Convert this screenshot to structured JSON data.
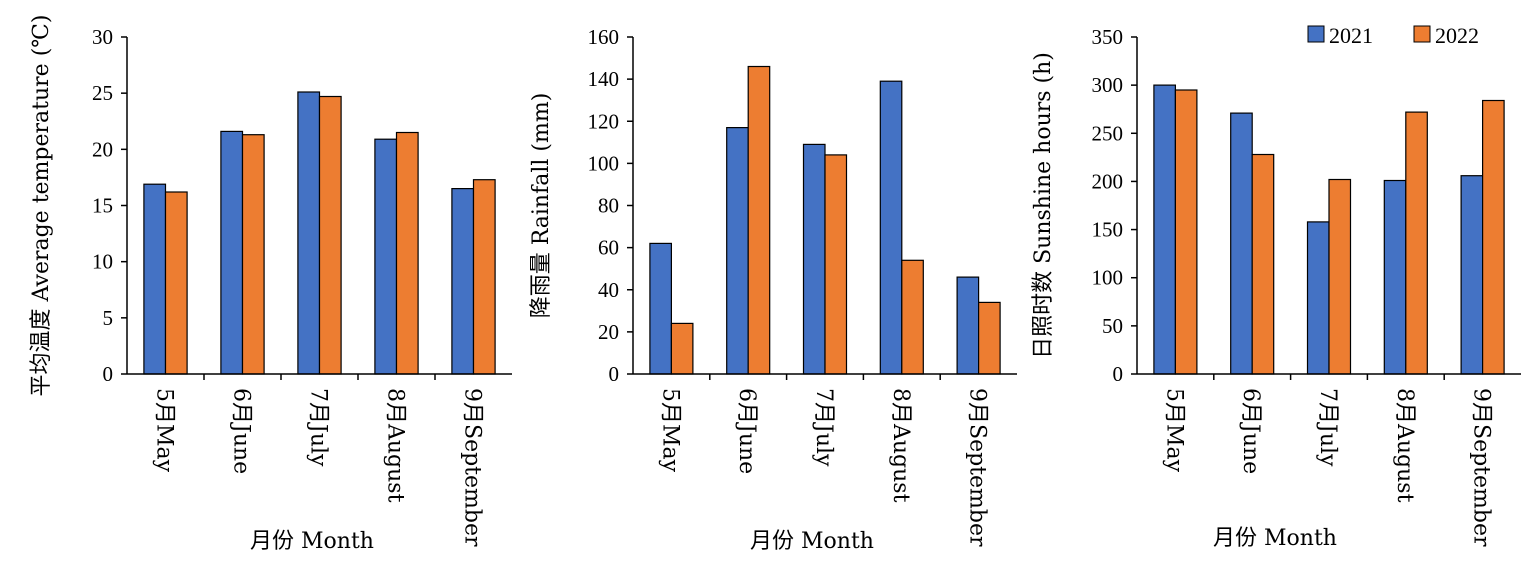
{
  "legend": [
    "2021",
    "2022"
  ],
  "colors": {
    "s2021": "#4472C4",
    "s2022": "#ED7D31",
    "axis": "#000000",
    "bar_edge": "#000000"
  },
  "chart_data": [
    {
      "type": "bar",
      "categories": [
        "5月May",
        "6月June",
        "7月July",
        "8月August",
        "9月September"
      ],
      "series": [
        {
          "name": "2021",
          "values": [
            16.9,
            21.6,
            25.1,
            20.9,
            16.5
          ]
        },
        {
          "name": "2022",
          "values": [
            16.2,
            21.3,
            24.7,
            21.5,
            17.3
          ]
        }
      ],
      "xlabel": "月份 Month",
      "ylabel": "平均温度 Average temperature (℃)",
      "ylim": [
        0,
        30
      ],
      "yticks": [
        0,
        5,
        10,
        15,
        20,
        25,
        30
      ],
      "grid": false
    },
    {
      "type": "bar",
      "categories": [
        "5月May",
        "6月June",
        "7月July",
        "8月August",
        "9月September"
      ],
      "series": [
        {
          "name": "2021",
          "values": [
            62,
            117,
            109,
            139,
            46
          ]
        },
        {
          "name": "2022",
          "values": [
            24,
            146,
            104,
            54,
            34
          ]
        }
      ],
      "xlabel": "月份 Month",
      "ylabel": "降雨量 Rainfall (mm)",
      "ylim": [
        0,
        160
      ],
      "yticks": [
        0,
        20,
        40,
        60,
        80,
        100,
        120,
        140,
        160
      ],
      "grid": false
    },
    {
      "type": "bar",
      "categories": [
        "5月May",
        "6月June",
        "7月July",
        "8月August",
        "9月September"
      ],
      "series": [
        {
          "name": "2021",
          "values": [
            300,
            271,
            158,
            201,
            206
          ]
        },
        {
          "name": "2022",
          "values": [
            295,
            228,
            202,
            272,
            284
          ]
        }
      ],
      "xlabel": "月份 Month",
      "ylabel": "日照时数 Sunshine hours (h)",
      "ylim": [
        0,
        350
      ],
      "yticks": [
        0,
        50,
        100,
        150,
        200,
        250,
        300,
        350
      ],
      "grid": false,
      "legend_position": "top-right"
    }
  ]
}
